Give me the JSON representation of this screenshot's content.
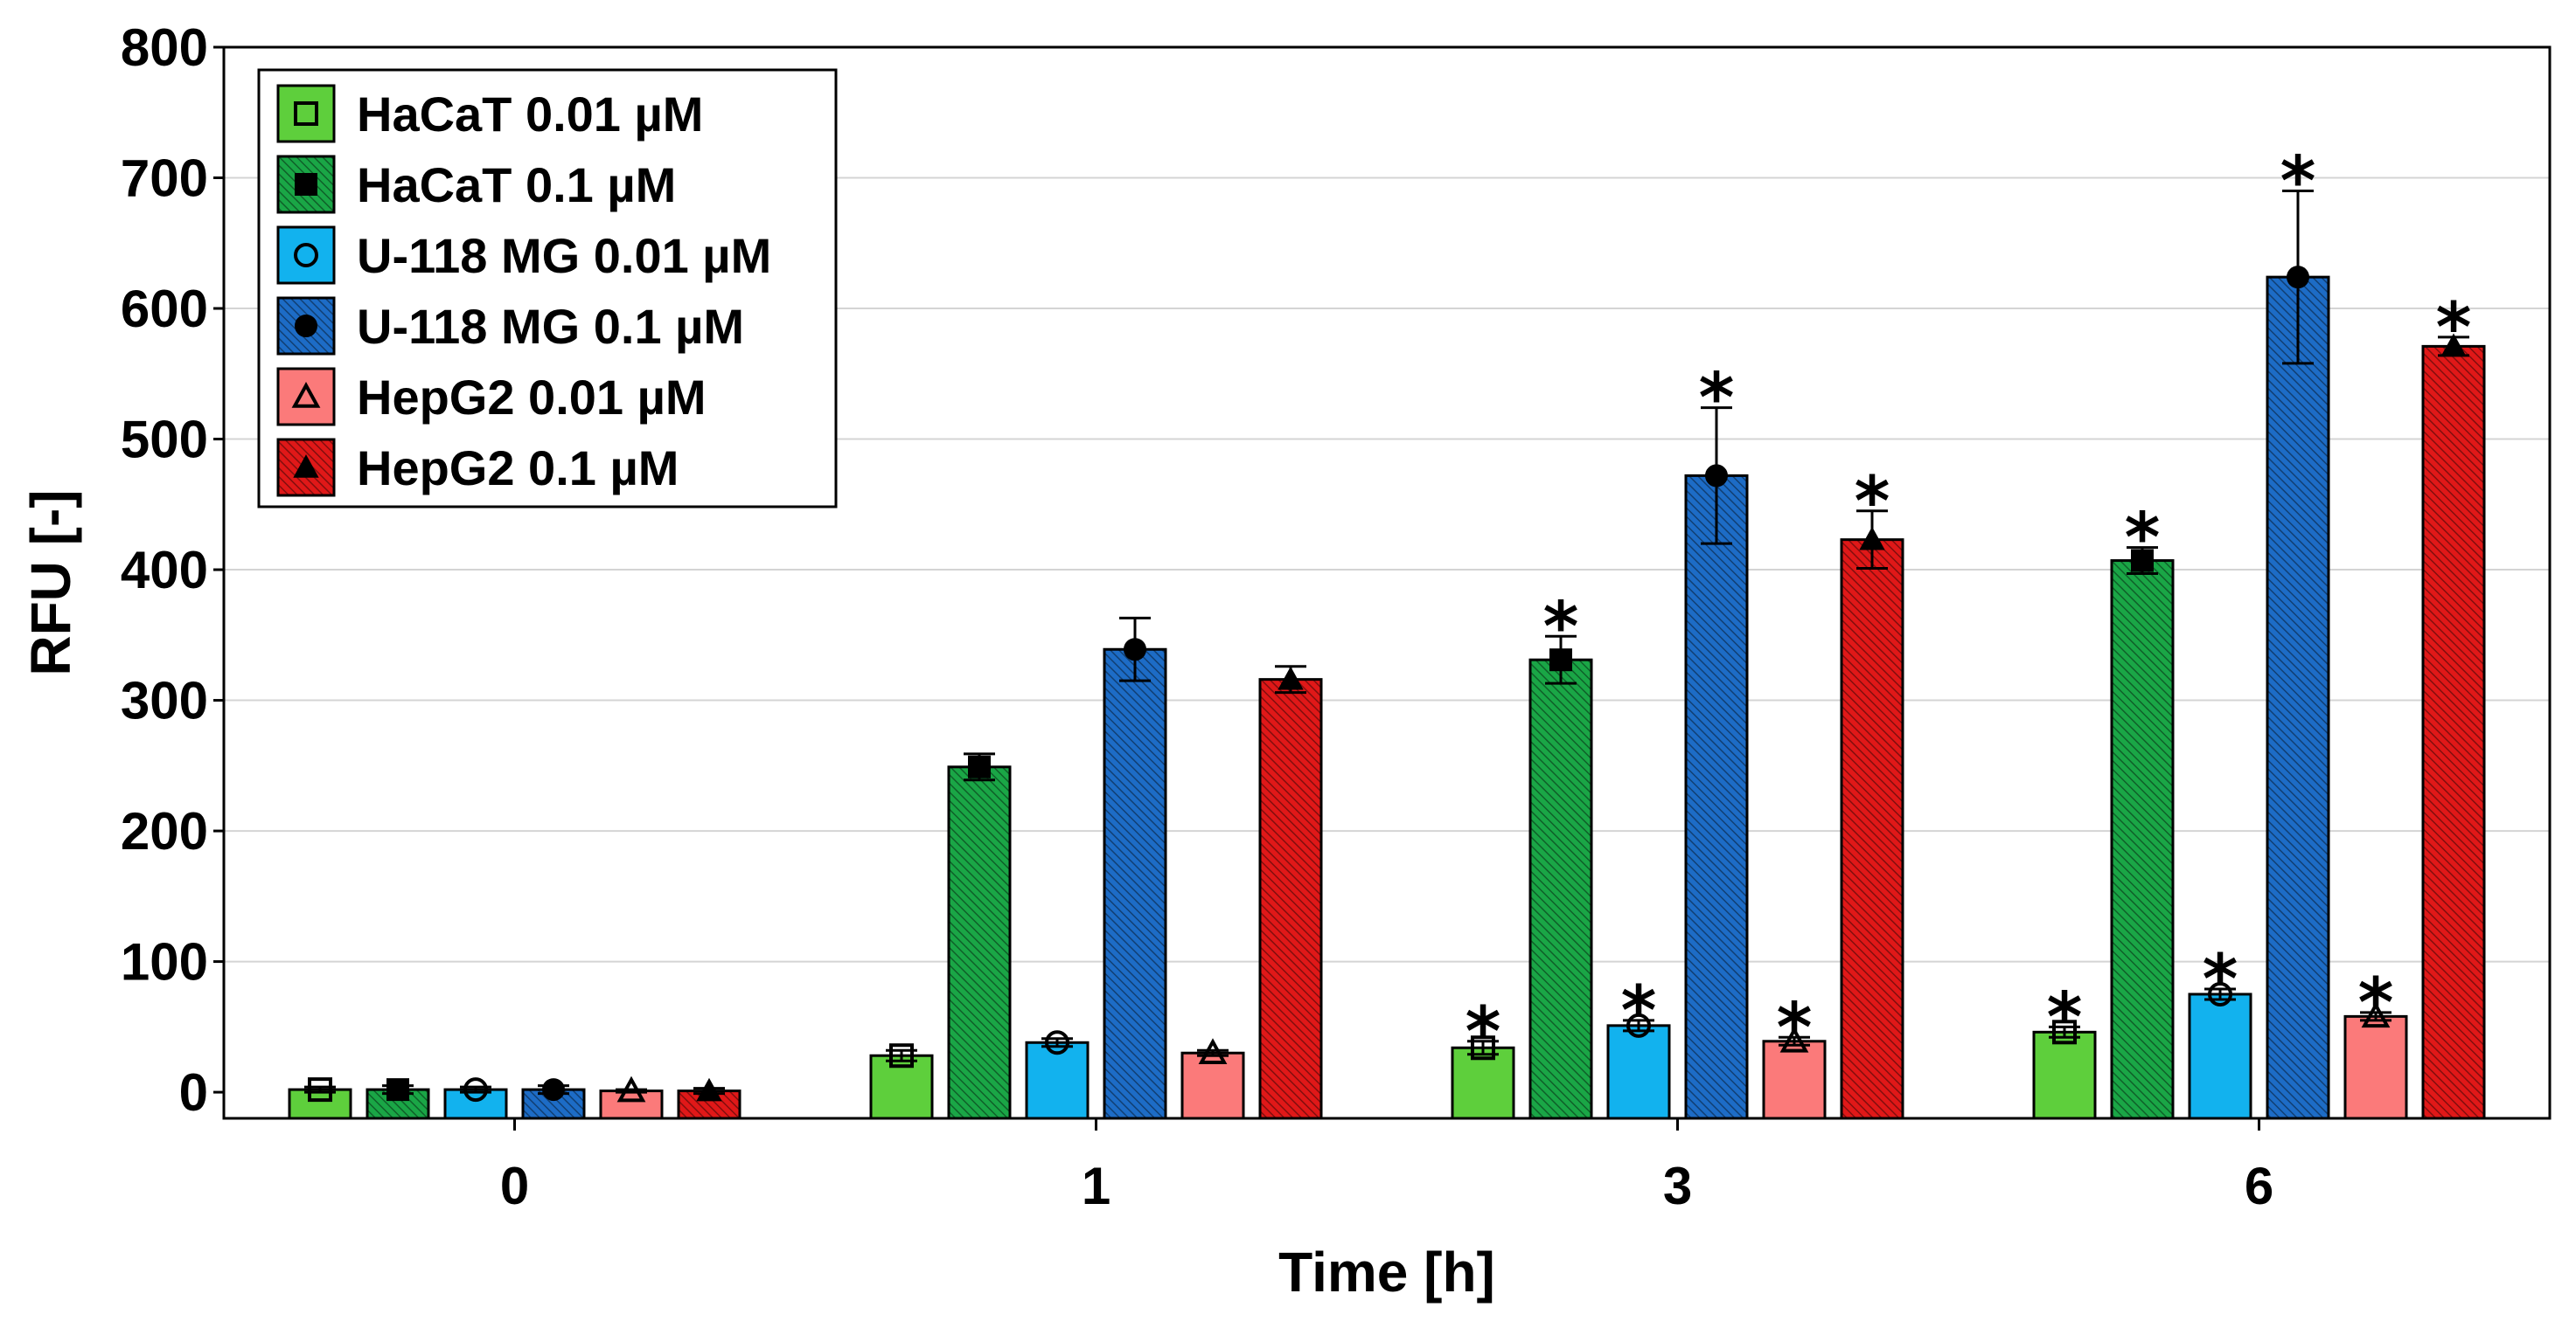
{
  "chart_data": {
    "type": "bar",
    "title": "",
    "xlabel": "Time [h]",
    "ylabel": "RFU [-]",
    "ylim": [
      -20,
      800
    ],
    "yticks": [
      0,
      100,
      200,
      300,
      400,
      500,
      600,
      700,
      800
    ],
    "grid": "horizontal",
    "legend_position": "top-left",
    "categories": [
      "0",
      "1",
      "3",
      "6"
    ],
    "significance_marker": "*",
    "series": [
      {
        "name": "HaCaT 0.01 µM",
        "color": "#5ecf3c",
        "hatched": false,
        "marker": "square-open",
        "values": [
          2,
          28,
          34,
          46
        ],
        "errors": [
          2,
          4,
          5,
          4
        ],
        "significant": [
          false,
          false,
          true,
          true
        ]
      },
      {
        "name": "HaCaT 0.1 µM",
        "color": "#1aa646",
        "hatched": true,
        "marker": "square-filled",
        "values": [
          2,
          249,
          331,
          407
        ],
        "errors": [
          3,
          10,
          18,
          10
        ],
        "significant": [
          false,
          false,
          true,
          true
        ]
      },
      {
        "name": "U-118 MG 0.01 µM",
        "color": "#12b2ee",
        "hatched": false,
        "marker": "circle-open",
        "values": [
          2,
          38,
          51,
          75
        ],
        "errors": [
          2,
          3,
          4,
          4
        ],
        "significant": [
          false,
          false,
          true,
          true
        ]
      },
      {
        "name": "U-118 MG 0.1 µM",
        "color": "#1d6cc6",
        "hatched": true,
        "marker": "circle-filled",
        "values": [
          2,
          339,
          472,
          624
        ],
        "errors": [
          3,
          24,
          52,
          66
        ],
        "significant": [
          false,
          false,
          true,
          true
        ]
      },
      {
        "name": "HepG2 0.01 µM",
        "color": "#fb7a7a",
        "hatched": false,
        "marker": "triangle-open",
        "values": [
          1,
          30,
          39,
          58
        ],
        "errors": [
          1,
          2,
          3,
          3
        ],
        "significant": [
          false,
          false,
          true,
          true
        ]
      },
      {
        "name": "HepG2 0.1 µM",
        "color": "#e01818",
        "hatched": true,
        "marker": "triangle-filled",
        "values": [
          1,
          316,
          423,
          571
        ],
        "errors": [
          2,
          10,
          22,
          7
        ],
        "significant": [
          false,
          false,
          true,
          true
        ]
      }
    ]
  }
}
